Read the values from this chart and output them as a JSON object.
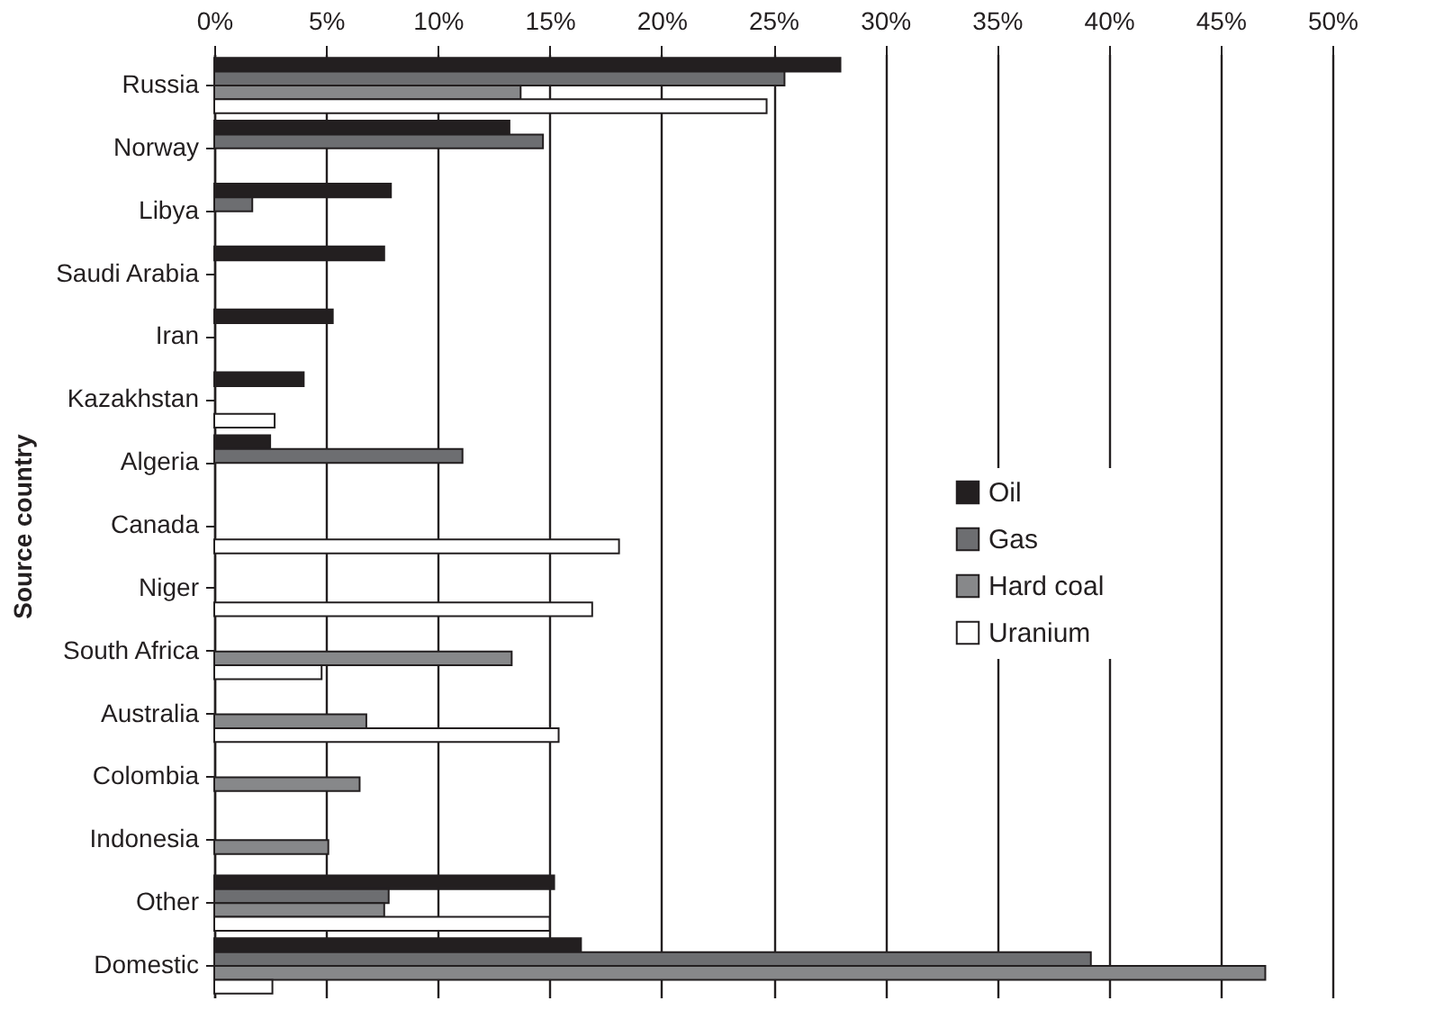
{
  "chart_data": {
    "type": "bar",
    "orientation": "horizontal",
    "ylabel": "Source country",
    "categories": [
      "Russia",
      "Norway",
      "Libya",
      "Saudi Arabia",
      "Iran",
      "Kazakhstan",
      "Algeria",
      "Canada",
      "Niger",
      "South Africa",
      "Australia",
      "Colombia",
      "Indonesia",
      "Other",
      "Domestic"
    ],
    "series": [
      {
        "name": "Oil",
        "color": "#231f20",
        "values": [
          28.0,
          13.2,
          7.9,
          7.6,
          5.3,
          4.0,
          2.5,
          null,
          null,
          null,
          null,
          null,
          null,
          15.2,
          16.4
        ]
      },
      {
        "name": "Gas",
        "color": "#6d6e71",
        "values": [
          25.5,
          14.7,
          1.7,
          null,
          null,
          null,
          11.1,
          null,
          null,
          null,
          null,
          null,
          null,
          7.8,
          39.2
        ]
      },
      {
        "name": "Hard coal",
        "color": "#87888a",
        "values": [
          13.7,
          null,
          null,
          null,
          null,
          null,
          null,
          null,
          null,
          13.3,
          6.8,
          6.5,
          5.1,
          7.6,
          47.0
        ]
      },
      {
        "name": "Uranium",
        "color": "#ffffff",
        "values": [
          24.7,
          null,
          null,
          null,
          null,
          2.7,
          null,
          18.1,
          16.9,
          4.8,
          15.4,
          null,
          null,
          15.0,
          2.6
        ]
      }
    ],
    "xlim": [
      0,
      50
    ],
    "xticks": [
      {
        "value": 0,
        "label": "0%"
      },
      {
        "value": 5,
        "label": "5%"
      },
      {
        "value": 10,
        "label": "10%"
      },
      {
        "value": 15,
        "label": "15%"
      },
      {
        "value": 20,
        "label": "20%"
      },
      {
        "value": 25,
        "label": "25%"
      },
      {
        "value": 30,
        "label": "30%"
      },
      {
        "value": 35,
        "label": "35%"
      },
      {
        "value": 40,
        "label": "40%"
      },
      {
        "value": 45,
        "label": "45%"
      },
      {
        "value": 50,
        "label": "50%"
      }
    ],
    "grid": "x",
    "legend": "right"
  }
}
